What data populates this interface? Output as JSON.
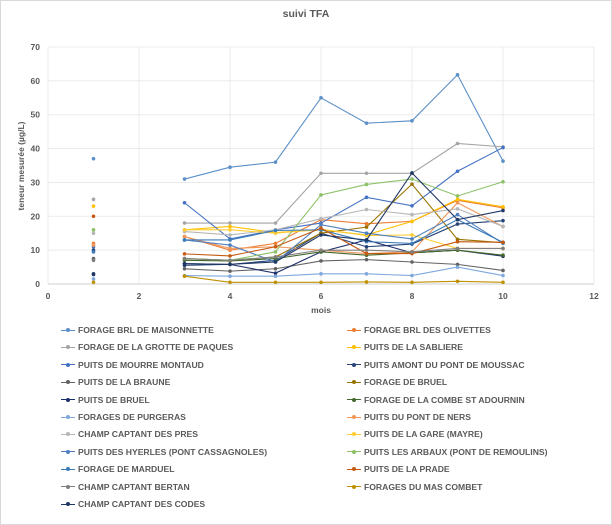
{
  "chart_data": {
    "type": "line",
    "title": "suivi TFA",
    "xlabel": "mois",
    "ylabel": "teneur mesurée (µg/L)",
    "xlim": [
      0,
      12
    ],
    "ylim": [
      0,
      70
    ],
    "xticks": [
      0,
      2,
      4,
      6,
      8,
      10,
      12
    ],
    "yticks": [
      0,
      10,
      20,
      30,
      40,
      50,
      60,
      70
    ],
    "grid": true,
    "legend_position": "bottom",
    "x": [
      1,
      3,
      4,
      5,
      6,
      7,
      8,
      9,
      10
    ],
    "series": [
      {
        "name": "FORAGE BRL DE MAISONNETTE",
        "color": "#5b8fc7",
        "values": [
          37,
          31,
          34.5,
          36,
          55,
          47.5,
          48.2,
          61.8,
          36.3
        ]
      },
      {
        "name": "FORAGE BRL DES OLIVETTES",
        "color": "#ed7d31",
        "values": [
          12,
          14,
          10,
          12,
          19,
          17.8,
          18.5,
          24.7,
          22.5
        ]
      },
      {
        "name": "FORAGE DE LA GROTTE DE PAQUES",
        "color": "#a5a5a5",
        "values": [
          25,
          18,
          18,
          18,
          32.7,
          32.7,
          32.7,
          41.5,
          40.5
        ]
      },
      {
        "name": "PUITS DE LA SABLIERE",
        "color": "#ffc000",
        "values": [
          23,
          16,
          17,
          15.2,
          16,
          14.5,
          18.5,
          25,
          22.8
        ]
      },
      {
        "name": "PUITS DE MOURRE MONTAUD",
        "color": "#4472c4",
        "values": [
          11,
          24,
          13.3,
          16,
          18,
          25.6,
          23.1,
          33.3,
          40.3
        ]
      },
      {
        "name": "PUITS AMONT DU PONT DE MOUSSAC",
        "color": "#264478",
        "values": [
          10,
          5.5,
          5.8,
          7,
          15,
          11,
          11.8,
          17.7,
          18.7
        ]
      },
      {
        "name": "PUITS DE LA BRAUNE",
        "color": "#636363",
        "values": [
          7.5,
          4.5,
          3.8,
          4.5,
          6.8,
          7.2,
          6.5,
          5.8,
          4
        ]
      },
      {
        "name": "FORAGE DE BRUEL",
        "color": "#997300",
        "values": [
          null,
          7.5,
          7,
          8,
          15,
          16.8,
          29.5,
          13.2,
          12.2
        ]
      },
      {
        "name": "PUITS DE BRUEL",
        "color": "#1f2f6b",
        "values": [
          2.8,
          6,
          5.8,
          3.2,
          9.5,
          13,
          9.2,
          10,
          8.2
        ]
      },
      {
        "name": "FORAGE DE LA COMBE ST ADOURNIN",
        "color": "#43682b",
        "values": [
          null,
          7,
          6.8,
          7.5,
          9.5,
          8.5,
          9.2,
          10,
          8.5
        ]
      },
      {
        "name": "FORAGES DE PURGERAS",
        "color": "#7fa8dc",
        "values": [
          1.5,
          2.5,
          2.3,
          2.3,
          3,
          3,
          2.5,
          5,
          2.5
        ]
      },
      {
        "name": "PUITS DU PONT DE NERS",
        "color": "#f1975a",
        "values": [
          11.5,
          14,
          10.5,
          11,
          10,
          9,
          9.5,
          24,
          17
        ]
      },
      {
        "name": "CHAMP CAPTANT DES PRES",
        "color": "#b7b7b7",
        "values": [
          15,
          15.5,
          14.5,
          16,
          19.3,
          22,
          20.5,
          22.2,
          17
        ]
      },
      {
        "name": "PUITS DE LA GARE (MAYRE)",
        "color": "#ffcd33",
        "values": [
          null,
          16,
          16,
          15,
          16.2,
          14.3,
          14.5,
          10.5,
          10.5
        ]
      },
      {
        "name": "PUITS DES HYERLES (PONT CASSAGNOLES)",
        "color": "#4f7fbf",
        "values": [
          null,
          13,
          11.5,
          6.5,
          17.5,
          15,
          13.3,
          20.5,
          12
        ]
      },
      {
        "name": "PUITS LES ARBAUX (PONT DE REMOULINS)",
        "color": "#8cc168",
        "values": [
          16,
          7.5,
          7,
          9.5,
          26.3,
          29.4,
          31,
          26,
          30.2
        ]
      },
      {
        "name": "FORAGE DE MARDUEL",
        "color": "#3b7bb8",
        "values": [
          9.5,
          13,
          13,
          15.8,
          16,
          12.5,
          12,
          19,
          12.3
        ]
      },
      {
        "name": "PUITS DE LA PRADE",
        "color": "#c55a11",
        "values": [
          20,
          8.9,
          8.3,
          11,
          16.5,
          9,
          9,
          12.5,
          12.3
        ]
      },
      {
        "name": "CHAMP CAPTANT BERTAN",
        "color": "#7f7f7f",
        "values": [
          7,
          7.5,
          7,
          8,
          10,
          10,
          9.5,
          10.5,
          10.5
        ]
      },
      {
        "name": "FORAGES DU MAS COMBET",
        "color": "#bf9000",
        "values": [
          0.5,
          2.3,
          0.5,
          0.5,
          0.5,
          0.6,
          0.5,
          0.8,
          0.5
        ]
      },
      {
        "name": "CHAMP CAPTANT DES CODES",
        "color": "#203864",
        "values": [
          3,
          6,
          5.8,
          6.5,
          14.5,
          13,
          32.8,
          19,
          21.7
        ]
      }
    ]
  }
}
